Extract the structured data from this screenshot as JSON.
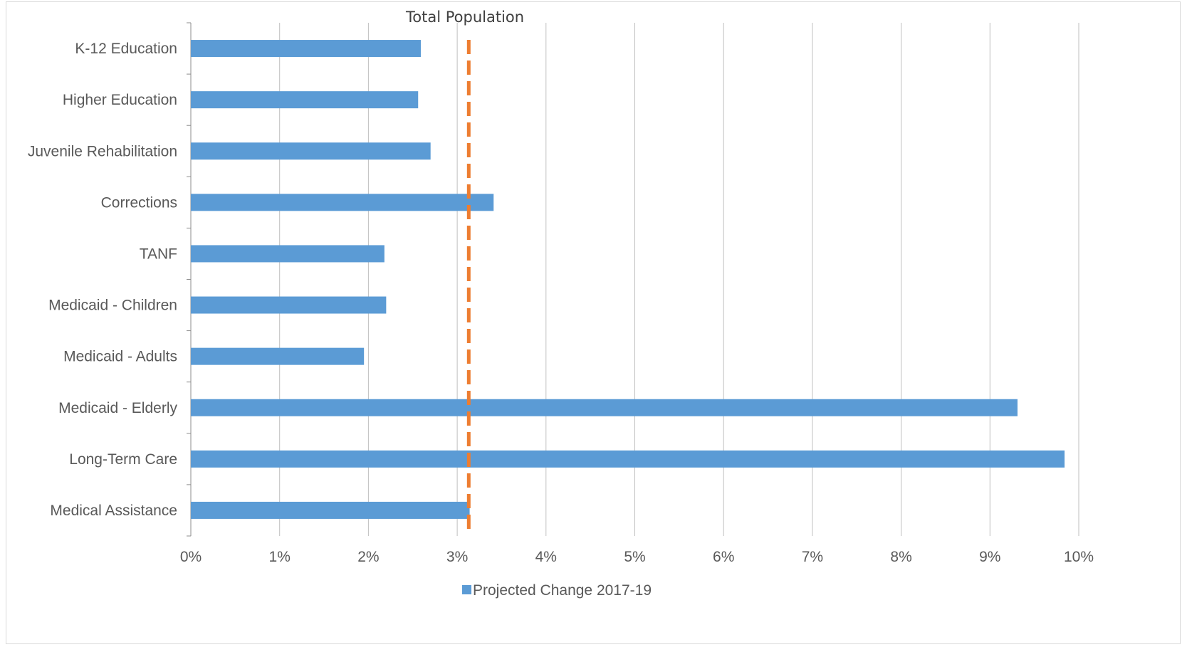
{
  "chart_data": {
    "type": "bar",
    "orientation": "horizontal",
    "categories": [
      "K-12 Education",
      "Higher Education",
      "Juvenile Rehabilitation",
      "Corrections",
      "TANF",
      "Medicaid - Children",
      "Medicaid - Adults",
      "Medicaid - Elderly",
      "Long-Term Care",
      "Medical Assistance"
    ],
    "series": [
      {
        "name": "Projected Change 2017-19",
        "values": [
          0.0259,
          0.0256,
          0.027,
          0.0341,
          0.0218,
          0.022,
          0.0195,
          0.0931,
          0.0984,
          0.0314
        ],
        "color": "#5b9bd5"
      }
    ],
    "reference_line": {
      "label": "Total Population",
      "value": 0.0313,
      "color": "#ed7d31",
      "style": "dashed"
    },
    "x_ticks": [
      "0%",
      "1%",
      "2%",
      "3%",
      "4%",
      "5%",
      "6%",
      "7%",
      "8%",
      "9%",
      "10%"
    ],
    "xlim": [
      0,
      0.1
    ],
    "grid": "vertical",
    "legend_position": "bottom"
  }
}
